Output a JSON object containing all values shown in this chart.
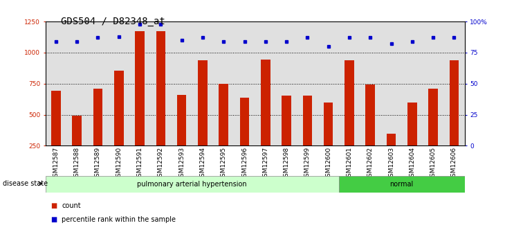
{
  "title": "GDS504 / D82348_at",
  "samples": [
    "GSM12587",
    "GSM12588",
    "GSM12589",
    "GSM12590",
    "GSM12591",
    "GSM12592",
    "GSM12593",
    "GSM12594",
    "GSM12595",
    "GSM12596",
    "GSM12597",
    "GSM12598",
    "GSM12599",
    "GSM12600",
    "GSM12601",
    "GSM12602",
    "GSM12603",
    "GSM12604",
    "GSM12605",
    "GSM12606"
  ],
  "counts": [
    695,
    490,
    710,
    855,
    1170,
    1170,
    660,
    940,
    750,
    635,
    945,
    655,
    655,
    600,
    940,
    745,
    350,
    600,
    710,
    940
  ],
  "percentile_ranks": [
    84,
    84,
    87,
    88,
    98,
    98,
    85,
    87,
    84,
    84,
    84,
    84,
    87,
    80,
    87,
    87,
    82,
    84,
    87,
    87
  ],
  "bar_color": "#cc2200",
  "dot_color": "#0000cc",
  "ylim_left": [
    250,
    1250
  ],
  "ylim_right": [
    0,
    100
  ],
  "yticks_left": [
    250,
    500,
    750,
    1000,
    1250
  ],
  "yticks_right": [
    0,
    25,
    50,
    75,
    100
  ],
  "yticklabels_right": [
    "0",
    "25",
    "50",
    "75",
    "100%"
  ],
  "grid_values": [
    500,
    750,
    1000
  ],
  "disease_groups": [
    {
      "label": "pulmonary arterial hypertension",
      "start": 0,
      "end": 14,
      "color": "#ccffcc"
    },
    {
      "label": "normal",
      "start": 14,
      "end": 20,
      "color": "#44cc44"
    }
  ],
  "disease_state_label": "disease state",
  "legend_items": [
    {
      "label": "count",
      "color": "#cc2200"
    },
    {
      "label": "percentile rank within the sample",
      "color": "#0000cc"
    }
  ],
  "bg_color": "#ffffff",
  "plot_bg_color": "#e0e0e0",
  "title_fontsize": 10,
  "tick_fontsize": 6.5
}
